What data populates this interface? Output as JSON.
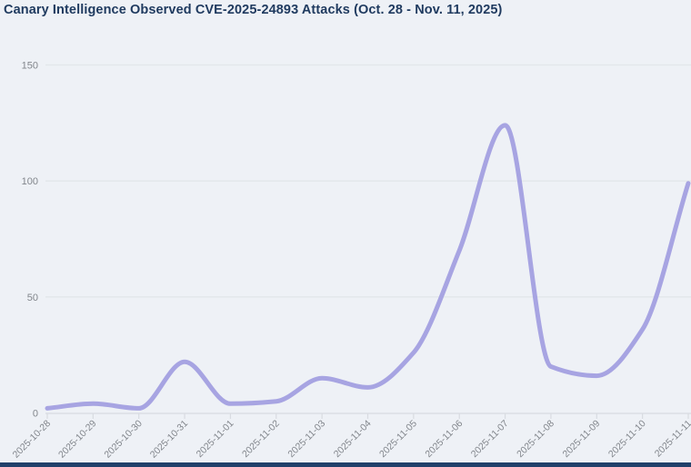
{
  "title": "Canary Intelligence Observed CVE-2025-24893 Attacks (Oct. 28 - Nov. 11, 2025)",
  "colors": {
    "background": "#eef1f6",
    "title_text": "#1f3a5f",
    "line": "#a7a4e2",
    "gridline": "#e3e6eb",
    "axis": "#d8dbe1",
    "tick_label": "#82868c",
    "bottom_edge_bar": "#21406a"
  },
  "chart_data": {
    "type": "line",
    "title": "Canary Intelligence Observed CVE-2025-24893 Attacks (Oct. 28 - Nov. 11, 2025)",
    "categories": [
      "2025-10-28",
      "2025-10-29",
      "2025-10-30",
      "2025-10-31",
      "2025-11-01",
      "2025-11-02",
      "2025-11-03",
      "2025-11-04",
      "2025-11-05",
      "2025-11-06",
      "2025-11-07",
      "2025-11-08",
      "2025-11-09",
      "2025-11-10",
      "2025-11-11"
    ],
    "values": [
      2,
      4,
      2,
      22,
      4,
      5,
      15,
      11,
      26,
      70,
      124,
      20,
      16,
      36,
      99
    ],
    "xlabel": "",
    "ylabel": "",
    "ylim": [
      0,
      150
    ],
    "yticks": [
      0,
      50,
      100,
      150
    ],
    "grid": true,
    "legend": false,
    "curve": "monotone",
    "line_color": "#a7a4e2"
  }
}
